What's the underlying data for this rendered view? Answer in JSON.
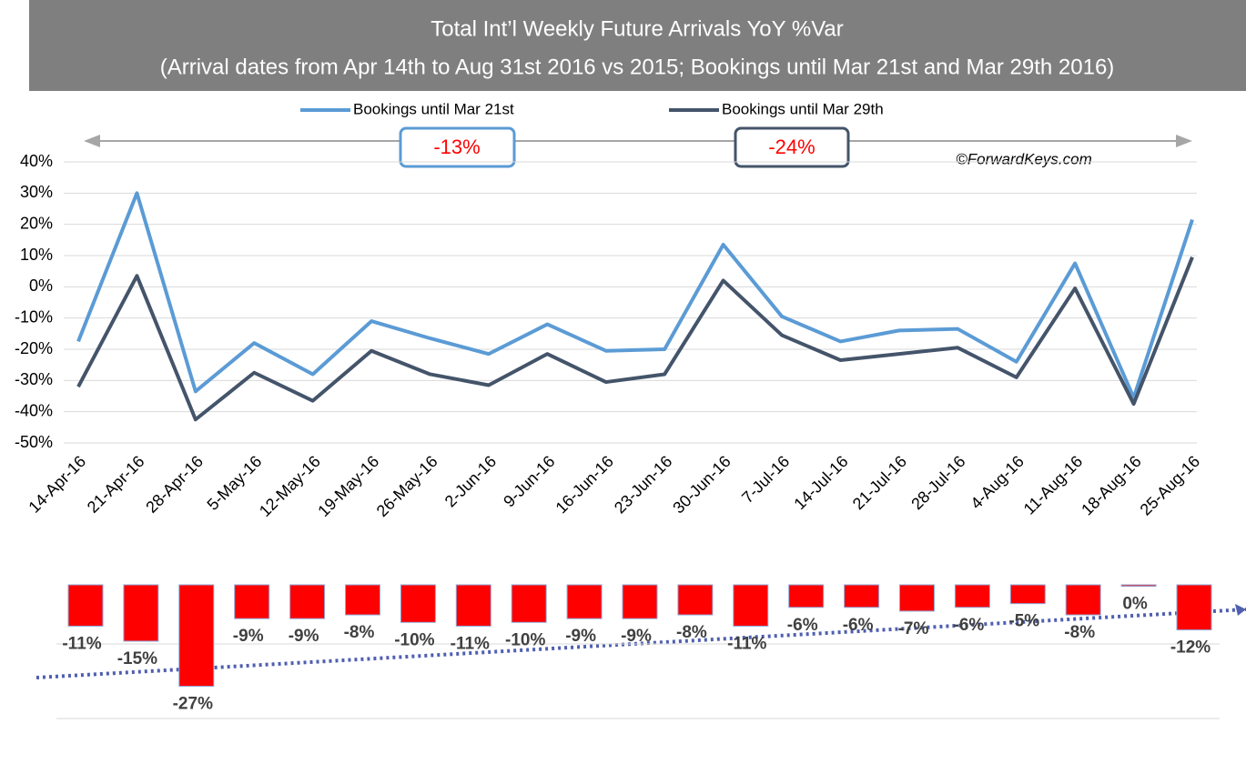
{
  "chart_data": [
    {
      "type": "line",
      "title": "Total Int’l Weekly Future Arrivals YoY %Var",
      "subtitle": "(Arrival dates from Apr 14th to Aug 31st 2016 vs 2015; Bookings until Mar 21st and Mar 29th 2016)",
      "categories": [
        "14-Apr-16",
        "21-Apr-16",
        "28-Apr-16",
        "5-May-16",
        "12-May-16",
        "19-May-16",
        "26-May-16",
        "2-Jun-16",
        "9-Jun-16",
        "16-Jun-16",
        "23-Jun-16",
        "30-Jun-16",
        "7-Jul-16",
        "14-Jul-16",
        "21-Jul-16",
        "28-Jul-16",
        "4-Aug-16",
        "11-Aug-16",
        "18-Aug-16",
        "25-Aug-16"
      ],
      "series": [
        {
          "name": "Bookings until Mar 21st",
          "color": "#5b9bd5",
          "values": [
            -17.5,
            30,
            -33.5,
            -18,
            -28,
            -11,
            -16.5,
            -21.5,
            -12,
            -20.5,
            -20,
            13.5,
            -9.5,
            -17.5,
            -14,
            -13.5,
            -24,
            7.5,
            -35.5,
            21.5
          ]
        },
        {
          "name": "Bookings until Mar 29th",
          "color": "#44546a",
          "values": [
            -32,
            3.5,
            -42.5,
            -27.5,
            -36.5,
            -20.5,
            -28,
            -31.5,
            -21.5,
            -30.5,
            -28,
            2,
            -15.5,
            -23.5,
            -21.5,
            -19.5,
            -29,
            -0.5,
            -37.5,
            9.5
          ]
        }
      ],
      "annotations": [
        "-13%",
        "-24%",
        "©ForwardKeys.com"
      ],
      "ylim": [
        -50,
        40
      ],
      "yticks": [
        {
          "value": -50,
          "label": "-50%"
        },
        {
          "value": -40,
          "label": "-40%"
        },
        {
          "value": -30,
          "label": "-30%"
        },
        {
          "value": -20,
          "label": "-20%"
        },
        {
          "value": -10,
          "label": "-10%"
        },
        {
          "value": 0,
          "label": "0%"
        },
        {
          "value": 10,
          "label": "10%"
        },
        {
          "value": 20,
          "label": "20%"
        },
        {
          "value": 30,
          "label": "30%"
        },
        {
          "value": 40,
          "label": "40%"
        }
      ],
      "grid": true
    },
    {
      "type": "bar",
      "color": "#ff0000",
      "values": [
        -11,
        -15,
        -27,
        -9,
        -9,
        -8,
        -10,
        -11,
        -10,
        -9,
        -9,
        -8,
        -11,
        -6,
        -6,
        -7,
        -6,
        -5,
        -8,
        -0.4,
        -12
      ],
      "value_labels": [
        "-11%",
        "-15%",
        "-27%",
        "-9%",
        "-9%",
        "-8%",
        "-10%",
        "-11%",
        "-10%",
        "-9%",
        "-9%",
        "-8%",
        "-11%",
        "-6%",
        "-6%",
        "-7%",
        "-6%",
        "-5%",
        "-8%",
        "0%",
        "-12%"
      ],
      "ylim": [
        -38,
        0
      ]
    }
  ]
}
